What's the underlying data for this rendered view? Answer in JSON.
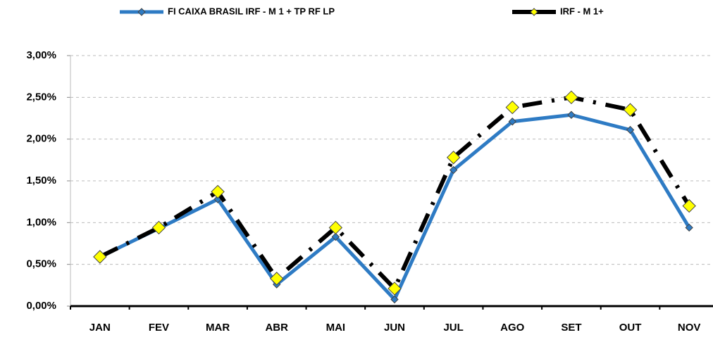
{
  "chart_data": {
    "type": "line",
    "categories": [
      "JAN",
      "FEV",
      "MAR",
      "ABR",
      "MAI",
      "JUN",
      "JUL",
      "AGO",
      "SET",
      "OUT",
      "NOV"
    ],
    "series": [
      {
        "name": "FI CAIXA BRASIL IRF - M 1 + TP RF LP",
        "color": "#2e7bc4",
        "marker_color": "#2e7bc4",
        "values": [
          0.59,
          0.93,
          1.28,
          0.26,
          0.83,
          0.08,
          1.63,
          2.21,
          2.29,
          2.11,
          0.94
        ]
      },
      {
        "name": "IRF - M 1+",
        "color": "#000000",
        "marker_color": "#ffff00",
        "values": [
          0.59,
          0.94,
          1.37,
          0.33,
          0.94,
          0.21,
          1.78,
          2.38,
          2.5,
          2.35,
          1.2
        ]
      }
    ],
    "ylim": [
      0,
      3
    ],
    "yticks": [
      {
        "value": 0,
        "label": "0,00%"
      },
      {
        "value": 0.5,
        "label": "0,50%"
      },
      {
        "value": 1,
        "label": "1,00%"
      },
      {
        "value": 1.5,
        "label": "1,50%"
      },
      {
        "value": 2,
        "label": "2,00%"
      },
      {
        "value": 2.5,
        "label": "2,50%"
      },
      {
        "value": 3,
        "label": "3,00%"
      }
    ],
    "grid": true
  }
}
